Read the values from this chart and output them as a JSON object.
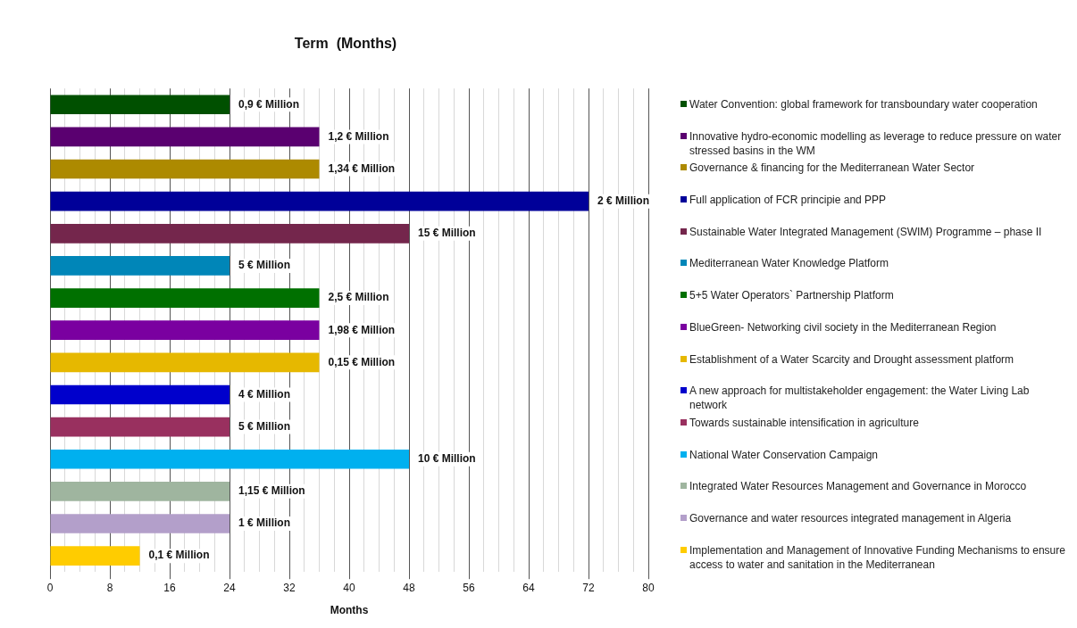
{
  "chart_data": {
    "type": "bar",
    "orientation": "horizontal",
    "title": "Term  (Months)",
    "xlabel": "Months",
    "categories": [
      null,
      null,
      null,
      null,
      null,
      null,
      null,
      null,
      null,
      null,
      null,
      null,
      null,
      null,
      null
    ],
    "series": [
      {
        "name": "Water Convention: global framework for transboundary water cooperation",
        "color": "#005000",
        "values": [
          24,
          null,
          null,
          null,
          null,
          null,
          null,
          null,
          null,
          null,
          null,
          null,
          null,
          null,
          null
        ]
      },
      {
        "name": "Innovative hydro-economic modelling as leverage to reduce pressure on water stressed basins in the WM",
        "color": "#5a0070",
        "values": [
          null,
          36,
          null,
          null,
          null,
          null,
          null,
          null,
          null,
          null,
          null,
          null,
          null,
          null,
          null
        ]
      },
      {
        "name": "Governance & financing for the Mediterranean Water Sector",
        "color": "#ad8a00",
        "values": [
          null,
          null,
          36,
          null,
          null,
          null,
          null,
          null,
          null,
          null,
          null,
          null,
          null,
          null,
          null
        ]
      },
      {
        "name": "Full application of FCR principie and PPP",
        "color": "#000099",
        "values": [
          null,
          null,
          null,
          72,
          null,
          null,
          null,
          null,
          null,
          null,
          null,
          null,
          null,
          null,
          null
        ]
      },
      {
        "name": "Sustainable Water Integrated Management (SWIM) Programme – phase II",
        "color": "#74264c",
        "values": [
          null,
          null,
          null,
          null,
          48,
          null,
          null,
          null,
          null,
          null,
          null,
          null,
          null,
          null,
          null
        ]
      },
      {
        "name": "Mediterranean Water Knowledge Platform",
        "color": "#0086b8",
        "values": [
          null,
          null,
          null,
          null,
          null,
          24,
          null,
          null,
          null,
          null,
          null,
          null,
          null,
          null,
          null
        ]
      },
      {
        "name": "5+5 Water Operators` Partnership Platform",
        "color": "#007000",
        "values": [
          null,
          null,
          null,
          null,
          null,
          null,
          36,
          null,
          null,
          null,
          null,
          null,
          null,
          null,
          null
        ]
      },
      {
        "name": "BlueGreen- Networking civil society in the Mediterranean Region",
        "color": "#7a00a0",
        "values": [
          null,
          null,
          null,
          null,
          null,
          null,
          null,
          36,
          null,
          null,
          null,
          null,
          null,
          null,
          null
        ]
      },
      {
        "name": "Establishment of a Water Scarcity and Drought assessment platform",
        "color": "#e6b800",
        "values": [
          null,
          null,
          null,
          null,
          null,
          null,
          null,
          null,
          36,
          null,
          null,
          null,
          null,
          null,
          null
        ]
      },
      {
        "name": "A new approach for multistakeholder engagement: the Water Living Lab network",
        "color": "#0000cc",
        "values": [
          null,
          null,
          null,
          null,
          null,
          null,
          null,
          null,
          null,
          24,
          null,
          null,
          null,
          null,
          null
        ]
      },
      {
        "name": "Towards sustainable intensification in agriculture",
        "color": "#99305f",
        "values": [
          null,
          null,
          null,
          null,
          null,
          null,
          null,
          null,
          null,
          null,
          24,
          null,
          null,
          null,
          null
        ]
      },
      {
        "name": "National Water Conservation Campaign",
        "color": "#00b0ef",
        "values": [
          null,
          null,
          null,
          null,
          null,
          null,
          null,
          null,
          null,
          null,
          null,
          48,
          null,
          null,
          null
        ]
      },
      {
        "name": "Integrated Water Resources Management and Governance in Morocco",
        "color": "#9fb59f",
        "values": [
          null,
          null,
          null,
          null,
          null,
          null,
          null,
          null,
          null,
          null,
          null,
          null,
          24,
          null,
          null
        ]
      },
      {
        "name": "Governance and water resources integrated management in Algeria",
        "color": "#b39fca",
        "values": [
          null,
          null,
          null,
          null,
          null,
          null,
          null,
          null,
          null,
          null,
          null,
          null,
          null,
          24,
          null
        ]
      },
      {
        "name": "Implementation and Management of Innovative Funding Mechanisms to ensure access to water and sanitation in the Mediterranean",
        "color": "#ffcc00",
        "values": [
          null,
          null,
          null,
          null,
          null,
          null,
          null,
          null,
          null,
          null,
          null,
          null,
          null,
          null,
          12
        ]
      }
    ],
    "annotations": [
      {
        "text": "0,9 € Million",
        "x": 24
      },
      {
        "text": "1,2 € Million",
        "x": 36
      },
      {
        "text": "1,34 € Million",
        "x": 36
      },
      {
        "text": "2 € Million",
        "x": 72
      },
      {
        "text": "15 € Million",
        "x": 48
      },
      {
        "text": "5 € Million",
        "x": 24
      },
      {
        "text": "2,5 € Million",
        "x": 36
      },
      {
        "text": "1,98 € Million",
        "x": 36
      },
      {
        "text": "0,15 € Million",
        "x": 36
      },
      {
        "text": "4 € Million",
        "x": 24
      },
      {
        "text": "5 € Million",
        "x": 24
      },
      {
        "text": "10 € Million",
        "x": 48
      },
      {
        "text": "1,15 € Million",
        "x": 24
      },
      {
        "text": "1 € Million",
        "x": 24
      },
      {
        "text": "0,1 € Million",
        "x": 12
      }
    ],
    "xlim": [
      0,
      80
    ],
    "xticks": [
      0,
      {
        "value": 2,
        "label": null
      },
      {
        "value": 4,
        "label": null
      },
      {
        "value": 6,
        "label": null
      },
      8,
      {
        "value": 10,
        "label": null
      },
      {
        "value": 12,
        "label": null
      },
      {
        "value": 14,
        "label": null
      },
      16,
      {
        "value": 18,
        "label": null
      },
      {
        "value": 20,
        "label": null
      },
      {
        "value": 22,
        "label": null
      },
      24,
      {
        "value": 26,
        "label": null
      },
      {
        "value": 28,
        "label": null
      },
      {
        "value": 30,
        "label": null
      },
      32,
      {
        "value": 34,
        "label": null
      },
      {
        "value": 36,
        "label": null
      },
      {
        "value": 38,
        "label": null
      },
      40,
      {
        "value": 42,
        "label": null
      },
      {
        "value": 44,
        "label": null
      },
      {
        "value": 46,
        "label": null
      },
      48,
      {
        "value": 50,
        "label": null
      },
      {
        "value": 52,
        "label": null
      },
      {
        "value": 54,
        "label": null
      },
      56,
      {
        "value": 58,
        "label": null
      },
      {
        "value": 60,
        "label": null
      },
      {
        "value": 62,
        "label": null
      },
      64,
      {
        "value": 66,
        "label": null
      },
      {
        "value": 68,
        "label": null
      },
      {
        "value": 70,
        "label": null
      },
      72,
      {
        "value": 74,
        "label": null
      },
      {
        "value": 76,
        "label": null
      },
      {
        "value": 78,
        "label": null
      },
      80
    ],
    "grid": "x",
    "legend": "right",
    "tick_labels": "x"
  }
}
